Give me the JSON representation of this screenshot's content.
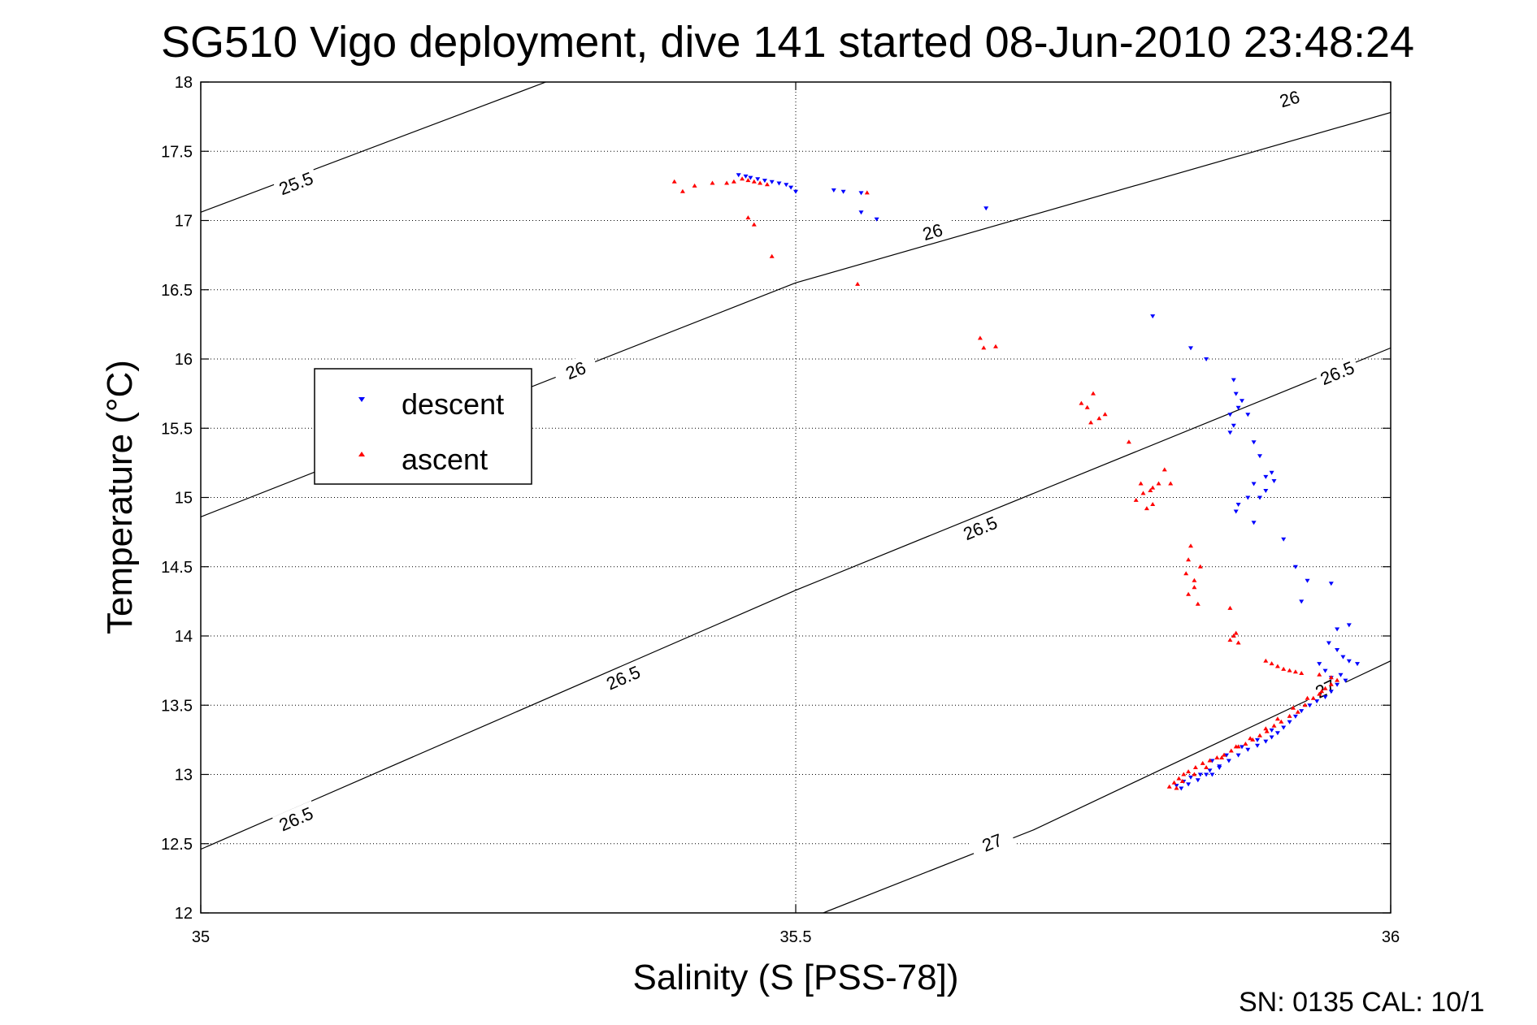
{
  "chart_data": {
    "type": "scatter",
    "title": "SG510 Vigo deployment, dive 141 started 08-Jun-2010 23:48:24",
    "xlabel": "Salinity (S [PSS-78])",
    "ylabel": "Temperature (°C)",
    "xlim": [
      35,
      36
    ],
    "ylim": [
      12,
      18
    ],
    "xticks": [
      {
        "value": 35,
        "label": "35"
      },
      {
        "value": 35.5,
        "label": "35.5"
      },
      {
        "value": 36,
        "label": "36"
      }
    ],
    "yticks": [
      {
        "value": 12,
        "label": "12"
      },
      {
        "value": 12.5,
        "label": "12.5"
      },
      {
        "value": 13,
        "label": "13"
      },
      {
        "value": 13.5,
        "label": "13.5"
      },
      {
        "value": 14,
        "label": "14"
      },
      {
        "value": 14.5,
        "label": "14.5"
      },
      {
        "value": 15,
        "label": "15"
      },
      {
        "value": 15.5,
        "label": "15.5"
      },
      {
        "value": 16,
        "label": "16"
      },
      {
        "value": 16.5,
        "label": "16.5"
      },
      {
        "value": 17,
        "label": "17"
      },
      {
        "value": 17.5,
        "label": "17.5"
      },
      {
        "value": 18,
        "label": "18"
      }
    ],
    "grid": true,
    "legend_position": "middle-left",
    "contours": [
      {
        "label": "25.5",
        "points": [
          [
            35.0,
            17.06
          ],
          [
            35.29,
            18.0
          ]
        ],
        "label_positions": [
          [
            35.08,
            17.27
          ]
        ]
      },
      {
        "label": "26",
        "points": [
          [
            35.0,
            14.86
          ],
          [
            35.5,
            16.55
          ],
          [
            36.0,
            17.78
          ],
          [
            36.1,
            18.0
          ]
        ],
        "label_positions": [
          [
            35.315,
            15.92
          ],
          [
            35.615,
            16.92
          ],
          [
            35.915,
            17.88
          ]
        ]
      },
      {
        "label": "26.5",
        "points": [
          [
            35.0,
            12.46
          ],
          [
            35.5,
            14.33
          ],
          [
            36.0,
            16.08
          ]
        ],
        "label_positions": [
          [
            35.08,
            12.68
          ],
          [
            35.355,
            13.7
          ],
          [
            35.655,
            14.78
          ],
          [
            35.955,
            15.9
          ]
        ]
      },
      {
        "label": "27",
        "points": [
          [
            35.523,
            12.0
          ],
          [
            35.7,
            12.6
          ],
          [
            36.0,
            13.82
          ]
        ],
        "label_positions": [
          [
            35.665,
            12.51
          ],
          [
            35.945,
            13.62
          ]
        ]
      }
    ],
    "series": [
      {
        "name": "descent",
        "color": "#0000ff",
        "marker": "triangle-down",
        "points": [
          [
            35.452,
            17.33
          ],
          [
            35.458,
            17.32
          ],
          [
            35.462,
            17.31
          ],
          [
            35.468,
            17.3
          ],
          [
            35.474,
            17.29
          ],
          [
            35.48,
            17.28
          ],
          [
            35.486,
            17.27
          ],
          [
            35.492,
            17.26
          ],
          [
            35.496,
            17.24
          ],
          [
            35.5,
            17.21
          ],
          [
            35.532,
            17.22
          ],
          [
            35.54,
            17.21
          ],
          [
            35.555,
            17.2
          ],
          [
            35.555,
            17.06
          ],
          [
            35.568,
            17.01
          ],
          [
            35.66,
            17.09
          ],
          [
            35.8,
            16.31
          ],
          [
            35.832,
            16.08
          ],
          [
            35.845,
            16.0
          ],
          [
            35.868,
            15.85
          ],
          [
            35.87,
            15.75
          ],
          [
            35.875,
            15.7
          ],
          [
            35.865,
            15.6
          ],
          [
            35.872,
            15.65
          ],
          [
            35.868,
            15.52
          ],
          [
            35.865,
            15.47
          ],
          [
            35.88,
            15.6
          ],
          [
            35.885,
            15.4
          ],
          [
            35.89,
            15.3
          ],
          [
            35.885,
            15.1
          ],
          [
            35.895,
            15.15
          ],
          [
            35.9,
            15.18
          ],
          [
            35.88,
            15.0
          ],
          [
            35.872,
            14.95
          ],
          [
            35.895,
            15.05
          ],
          [
            35.902,
            15.12
          ],
          [
            35.89,
            15.0
          ],
          [
            35.87,
            14.9
          ],
          [
            35.885,
            14.82
          ],
          [
            35.91,
            14.7
          ],
          [
            35.92,
            14.5
          ],
          [
            35.93,
            14.4
          ],
          [
            35.95,
            14.38
          ],
          [
            35.925,
            14.25
          ],
          [
            35.955,
            14.05
          ],
          [
            35.965,
            14.08
          ],
          [
            35.948,
            13.95
          ],
          [
            35.955,
            13.9
          ],
          [
            35.96,
            13.85
          ],
          [
            35.965,
            13.82
          ],
          [
            35.972,
            13.8
          ],
          [
            35.94,
            13.8
          ],
          [
            35.945,
            13.75
          ],
          [
            35.95,
            13.7
          ],
          [
            35.958,
            13.72
          ],
          [
            35.962,
            13.68
          ],
          [
            35.955,
            13.65
          ],
          [
            35.95,
            13.6
          ],
          [
            35.945,
            13.56
          ],
          [
            35.938,
            13.53
          ],
          [
            35.932,
            13.5
          ],
          [
            35.925,
            13.46
          ],
          [
            35.92,
            13.42
          ],
          [
            35.915,
            13.38
          ],
          [
            35.91,
            13.34
          ],
          [
            35.905,
            13.3
          ],
          [
            35.9,
            13.27
          ],
          [
            35.895,
            13.24
          ],
          [
            35.888,
            13.21
          ],
          [
            35.88,
            13.18
          ],
          [
            35.872,
            13.14
          ],
          [
            35.864,
            13.1
          ],
          [
            35.856,
            13.06
          ],
          [
            35.848,
            13.03
          ],
          [
            35.84,
            13.0
          ],
          [
            35.832,
            12.98
          ],
          [
            35.826,
            12.95
          ],
          [
            35.82,
            12.92
          ],
          [
            35.856,
            13.05
          ],
          [
            35.85,
            13.0
          ],
          [
            35.845,
            13.0
          ],
          [
            35.838,
            12.96
          ],
          [
            35.83,
            12.93
          ],
          [
            35.824,
            12.9
          ],
          [
            35.85,
            13.1
          ],
          [
            35.862,
            13.14
          ],
          [
            35.875,
            13.2
          ],
          [
            35.888,
            13.25
          ],
          [
            35.9,
            13.32
          ]
        ]
      },
      {
        "name": "ascent",
        "color": "#ff0000",
        "marker": "triangle-up",
        "points": [
          [
            35.398,
            17.28
          ],
          [
            35.405,
            17.21
          ],
          [
            35.415,
            17.25
          ],
          [
            35.43,
            17.27
          ],
          [
            35.442,
            17.27
          ],
          [
            35.448,
            17.28
          ],
          [
            35.455,
            17.3
          ],
          [
            35.46,
            17.29
          ],
          [
            35.465,
            17.28
          ],
          [
            35.47,
            17.27
          ],
          [
            35.476,
            17.26
          ],
          [
            35.46,
            17.02
          ],
          [
            35.465,
            16.97
          ],
          [
            35.48,
            16.74
          ],
          [
            35.56,
            17.2
          ],
          [
            35.552,
            16.54
          ],
          [
            35.655,
            16.15
          ],
          [
            35.658,
            16.08
          ],
          [
            35.668,
            16.09
          ],
          [
            35.74,
            15.68
          ],
          [
            35.745,
            15.65
          ],
          [
            35.75,
            15.75
          ],
          [
            35.755,
            15.57
          ],
          [
            35.76,
            15.6
          ],
          [
            35.748,
            15.54
          ],
          [
            35.78,
            15.4
          ],
          [
            35.79,
            15.1
          ],
          [
            35.798,
            15.05
          ],
          [
            35.805,
            15.1
          ],
          [
            35.81,
            15.2
          ],
          [
            35.8,
            15.07
          ],
          [
            35.792,
            15.03
          ],
          [
            35.786,
            14.98
          ],
          [
            35.8,
            14.95
          ],
          [
            35.795,
            14.92
          ],
          [
            35.815,
            15.1
          ],
          [
            35.832,
            14.65
          ],
          [
            35.83,
            14.55
          ],
          [
            35.828,
            14.45
          ],
          [
            35.835,
            14.4
          ],
          [
            35.84,
            14.5
          ],
          [
            35.835,
            14.35
          ],
          [
            35.83,
            14.3
          ],
          [
            35.838,
            14.23
          ],
          [
            35.865,
            14.2
          ],
          [
            35.87,
            14.02
          ],
          [
            35.868,
            14.0
          ],
          [
            35.865,
            13.97
          ],
          [
            35.872,
            13.95
          ],
          [
            35.895,
            13.82
          ],
          [
            35.9,
            13.8
          ],
          [
            35.905,
            13.78
          ],
          [
            35.91,
            13.76
          ],
          [
            35.915,
            13.75
          ],
          [
            35.92,
            13.74
          ],
          [
            35.925,
            13.73
          ],
          [
            35.94,
            13.72
          ],
          [
            35.95,
            13.7
          ],
          [
            35.955,
            13.68
          ],
          [
            35.945,
            13.62
          ],
          [
            35.94,
            13.58
          ],
          [
            35.935,
            13.55
          ],
          [
            35.928,
            13.5
          ],
          [
            35.922,
            13.45
          ],
          [
            35.915,
            13.42
          ],
          [
            35.908,
            13.38
          ],
          [
            35.902,
            13.35
          ],
          [
            35.896,
            13.31
          ],
          [
            35.89,
            13.28
          ],
          [
            35.884,
            13.25
          ],
          [
            35.878,
            13.22
          ],
          [
            35.872,
            13.2
          ],
          [
            35.866,
            13.17
          ],
          [
            35.86,
            13.14
          ],
          [
            35.854,
            13.12
          ],
          [
            35.848,
            13.1
          ],
          [
            35.842,
            13.08
          ],
          [
            35.836,
            13.05
          ],
          [
            35.83,
            13.02
          ],
          [
            35.826,
            13.0
          ],
          [
            35.822,
            12.97
          ],
          [
            35.818,
            12.94
          ],
          [
            35.814,
            12.91
          ],
          [
            35.82,
            12.9
          ],
          [
            35.825,
            12.95
          ],
          [
            35.835,
            13.0
          ],
          [
            35.845,
            13.05
          ],
          [
            35.858,
            13.12
          ],
          [
            35.87,
            13.2
          ],
          [
            35.882,
            13.26
          ],
          [
            35.895,
            13.33
          ],
          [
            35.905,
            13.4
          ],
          [
            35.918,
            13.48
          ],
          [
            35.93,
            13.55
          ],
          [
            35.942,
            13.6
          ],
          [
            35.95,
            13.65
          ]
        ]
      }
    ]
  },
  "footer": {
    "calibration_text": "SN: 0135  CAL: 10/1"
  }
}
